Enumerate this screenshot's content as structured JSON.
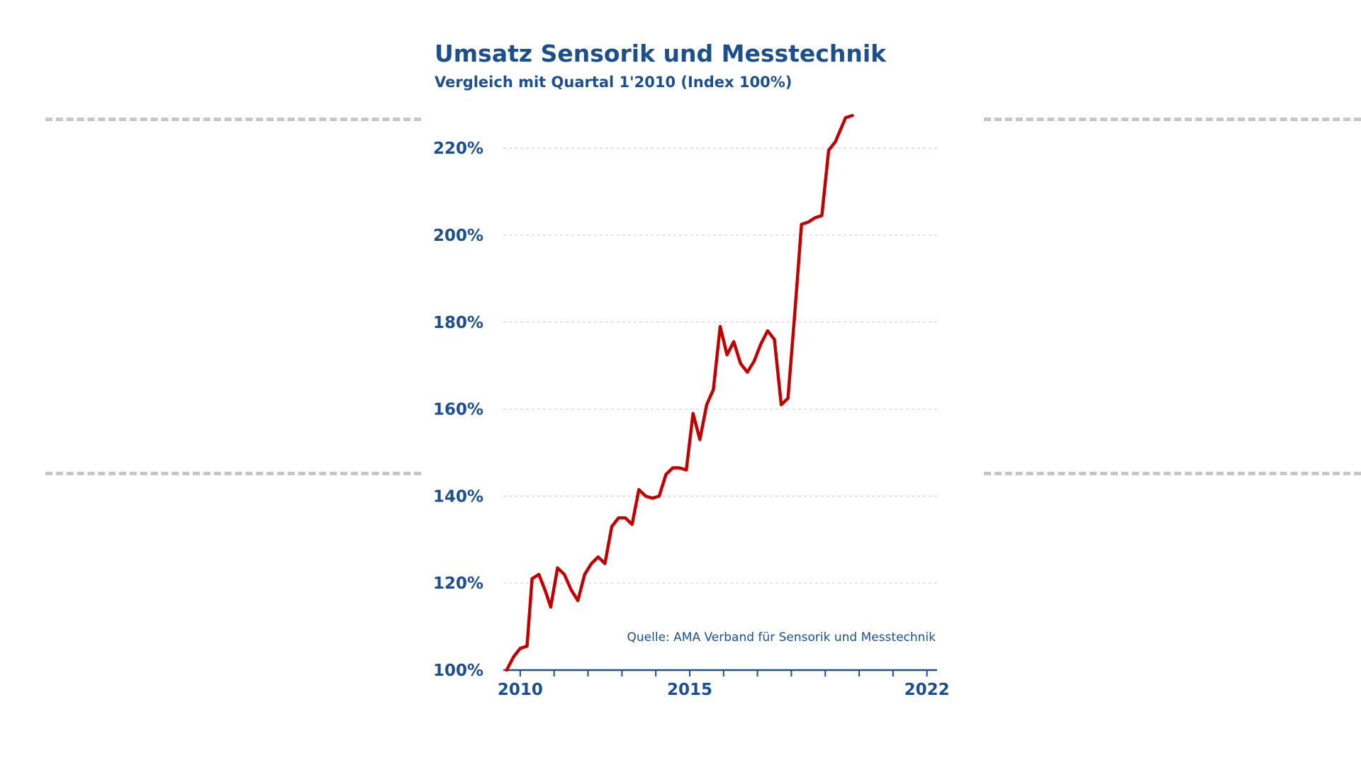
{
  "chart_data": {
    "type": "line",
    "title": "Umsatz Sensorik und Messtechnik",
    "subtitle": "Vergleich mit Quartal 1'2010 (Index 100%)",
    "source": "Quelle: AMA Verband für Sensorik und Messtechnik",
    "y_tick_labels": [
      "100%",
      "120%",
      "140%",
      "160%",
      "180%",
      "200%",
      "220%"
    ],
    "y_ticks": [
      100,
      120,
      140,
      160,
      180,
      200,
      220
    ],
    "x_tick_labels": [
      {
        "label": "2010",
        "x": 2010
      },
      {
        "label": "2015",
        "x": 2015
      },
      {
        "label": "2022",
        "x": 2022
      }
    ],
    "ylim": [
      100,
      228
    ],
    "xlim": [
      2009.5,
      2022.3
    ],
    "grid": true,
    "series": [
      {
        "color": "#c00000",
        "points": [
          [
            2009.6,
            100
          ],
          [
            2009.8,
            103
          ],
          [
            2010.0,
            105
          ],
          [
            2010.2,
            105.5
          ],
          [
            2010.35,
            121
          ],
          [
            2010.55,
            122
          ],
          [
            2010.75,
            118
          ],
          [
            2010.9,
            114.5
          ],
          [
            2011.1,
            123.5
          ],
          [
            2011.3,
            122
          ],
          [
            2011.5,
            118.5
          ],
          [
            2011.7,
            116
          ],
          [
            2011.9,
            122
          ],
          [
            2012.1,
            124.5
          ],
          [
            2012.3,
            126
          ],
          [
            2012.5,
            124.5
          ],
          [
            2012.7,
            133
          ],
          [
            2012.9,
            135
          ],
          [
            2013.1,
            135
          ],
          [
            2013.3,
            133.5
          ],
          [
            2013.5,
            141.5
          ],
          [
            2013.7,
            140
          ],
          [
            2013.9,
            139.5
          ],
          [
            2014.1,
            140
          ],
          [
            2014.3,
            145
          ],
          [
            2014.5,
            146.5
          ],
          [
            2014.7,
            146.5
          ],
          [
            2014.9,
            146
          ],
          [
            2015.1,
            159
          ],
          [
            2015.3,
            153
          ],
          [
            2015.5,
            161
          ],
          [
            2015.7,
            164.5
          ],
          [
            2015.9,
            179
          ],
          [
            2016.1,
            172.5
          ],
          [
            2016.3,
            175.5
          ],
          [
            2016.5,
            170.5
          ],
          [
            2016.7,
            168.5
          ],
          [
            2016.9,
            171
          ],
          [
            2017.1,
            175
          ],
          [
            2017.3,
            178
          ],
          [
            2017.5,
            176
          ],
          [
            2017.7,
            161
          ],
          [
            2017.9,
            162.5
          ],
          [
            2018.1,
            182
          ],
          [
            2018.3,
            202.5
          ],
          [
            2018.5,
            203
          ],
          [
            2018.7,
            204
          ],
          [
            2018.9,
            204.5
          ],
          [
            2019.1,
            219.5
          ],
          [
            2019.3,
            221.5
          ],
          [
            2019.6,
            227
          ],
          [
            2019.8,
            227.5
          ]
        ]
      }
    ]
  }
}
